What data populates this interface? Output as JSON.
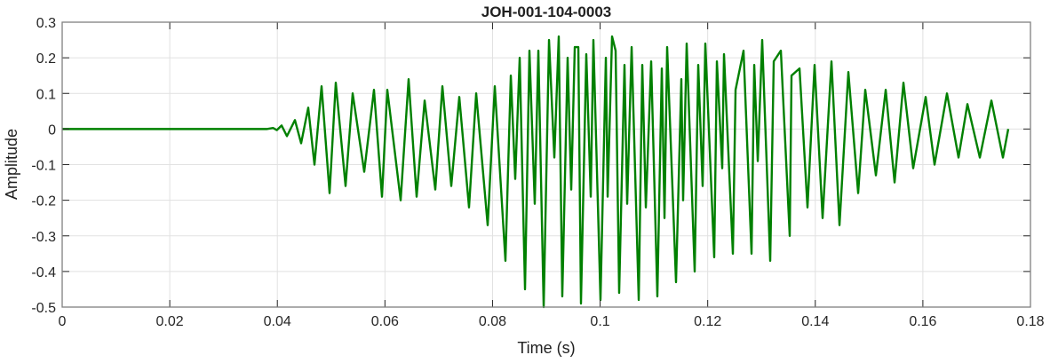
{
  "chart_data": {
    "type": "line",
    "title": "JOH-001-104-0003",
    "xlabel": "Time (s)",
    "ylabel": "Amplitude",
    "xlim": [
      0,
      0.18
    ],
    "ylim": [
      -0.5,
      0.3
    ],
    "xticks": [
      0,
      0.02,
      0.04,
      0.06,
      0.08,
      0.1,
      0.12,
      0.14,
      0.16,
      0.18
    ],
    "xtick_labels": [
      "0",
      "0.02",
      "0.04",
      "0.06",
      "0.08",
      "0.1",
      "0.12",
      "0.14",
      "0.16",
      "0.18"
    ],
    "yticks": [
      -0.5,
      -0.4,
      -0.3,
      -0.2,
      -0.1,
      0,
      0.1,
      0.2,
      0.3
    ],
    "ytick_labels": [
      "-0.5",
      "-0.4",
      "-0.3",
      "-0.2",
      "-0.1",
      "0",
      "0.1",
      "0.2",
      "0.3"
    ],
    "grid": true,
    "box": true,
    "line_color": "#008000",
    "series": [
      {
        "points": [
          [
            0,
            0
          ],
          [
            0.038,
            0
          ],
          [
            0.0392,
            0.003
          ],
          [
            0.0399,
            -0.003
          ],
          [
            0.04079,
            0.01
          ],
          [
            0.04178,
            -0.02
          ],
          [
            0.04327,
            0.025
          ],
          [
            0.04442,
            -0.04
          ],
          [
            0.04574,
            0.06
          ],
          [
            0.0469,
            -0.1
          ],
          [
            0.04822,
            0.12
          ],
          [
            0.04971,
            -0.18
          ],
          [
            0.05086,
            0.13
          ],
          [
            0.05268,
            -0.16
          ],
          [
            0.054,
            0.1
          ],
          [
            0.05615,
            -0.12
          ],
          [
            0.05796,
            0.11
          ],
          [
            0.05945,
            -0.19
          ],
          [
            0.06044,
            0.11
          ],
          [
            0.06292,
            -0.2
          ],
          [
            0.0644,
            0.14
          ],
          [
            0.06589,
            -0.19
          ],
          [
            0.06738,
            0.08
          ],
          [
            0.06936,
            -0.17
          ],
          [
            0.07068,
            0.12
          ],
          [
            0.07233,
            -0.16
          ],
          [
            0.07382,
            0.09
          ],
          [
            0.07563,
            -0.22
          ],
          [
            0.07696,
            0.1
          ],
          [
            0.0791,
            -0.27
          ],
          [
            0.08042,
            0.12
          ],
          [
            0.0824,
            -0.37
          ],
          [
            0.0834,
            0.15
          ],
          [
            0.08422,
            -0.14
          ],
          [
            0.08505,
            0.2
          ],
          [
            0.08604,
            -0.45
          ],
          [
            0.08686,
            0.22
          ],
          [
            0.08785,
            -0.21
          ],
          [
            0.08852,
            0.22
          ],
          [
            0.08951,
            -0.5
          ],
          [
            0.0905,
            0.25
          ],
          [
            0.09149,
            -0.08
          ],
          [
            0.09231,
            0.26
          ],
          [
            0.09297,
            -0.47
          ],
          [
            0.09396,
            0.2
          ],
          [
            0.09463,
            -0.17
          ],
          [
            0.09529,
            0.23
          ],
          [
            0.09595,
            0.23
          ],
          [
            0.09644,
            -0.49
          ],
          [
            0.09743,
            0.21
          ],
          [
            0.09826,
            -0.19
          ],
          [
            0.09875,
            0.25
          ],
          [
            0.10007,
            -0.48
          ],
          [
            0.10107,
            0.2
          ],
          [
            0.1014,
            -0.19
          ],
          [
            0.10222,
            0.26
          ],
          [
            0.10288,
            0.22
          ],
          [
            0.10354,
            -0.46
          ],
          [
            0.10453,
            0.18
          ],
          [
            0.10503,
            -0.21
          ],
          [
            0.10586,
            0.23
          ],
          [
            0.10718,
            -0.48
          ],
          [
            0.10784,
            0.18
          ],
          [
            0.1085,
            -0.22
          ],
          [
            0.10949,
            0.19
          ],
          [
            0.11064,
            -0.47
          ],
          [
            0.11147,
            0.17
          ],
          [
            0.11197,
            -0.25
          ],
          [
            0.11246,
            0.23
          ],
          [
            0.11411,
            -0.43
          ],
          [
            0.1151,
            0.14
          ],
          [
            0.11543,
            -0.2
          ],
          [
            0.11609,
            0.24
          ],
          [
            0.11758,
            -0.4
          ],
          [
            0.11824,
            0.18
          ],
          [
            0.11906,
            -0.16
          ],
          [
            0.11956,
            0.24
          ],
          [
            0.12121,
            -0.36
          ],
          [
            0.12171,
            0.19
          ],
          [
            0.1227,
            -0.11
          ],
          [
            0.12303,
            0.21
          ],
          [
            0.12468,
            -0.35
          ],
          [
            0.12518,
            0.11
          ],
          [
            0.12666,
            0.22
          ],
          [
            0.12815,
            -0.35
          ],
          [
            0.12865,
            0.18
          ],
          [
            0.12931,
            -0.09
          ],
          [
            0.13013,
            0.25
          ],
          [
            0.13162,
            -0.37
          ],
          [
            0.13228,
            0.19
          ],
          [
            0.1336,
            0.22
          ],
          [
            0.13525,
            -0.3
          ],
          [
            0.13558,
            0.15
          ],
          [
            0.13707,
            0.17
          ],
          [
            0.13855,
            -0.22
          ],
          [
            0.13987,
            0.18
          ],
          [
            0.14136,
            -0.25
          ],
          [
            0.14301,
            0.19
          ],
          [
            0.1445,
            -0.27
          ],
          [
            0.14615,
            0.16
          ],
          [
            0.14797,
            -0.18
          ],
          [
            0.14929,
            0.11
          ],
          [
            0.15127,
            -0.13
          ],
          [
            0.15309,
            0.11
          ],
          [
            0.15474,
            -0.15
          ],
          [
            0.15639,
            0.13
          ],
          [
            0.1582,
            -0.11
          ],
          [
            0.16052,
            0.09
          ],
          [
            0.16217,
            -0.1
          ],
          [
            0.16448,
            0.1
          ],
          [
            0.16663,
            -0.08
          ],
          [
            0.16828,
            0.07
          ],
          [
            0.17059,
            -0.08
          ],
          [
            0.17274,
            0.08
          ],
          [
            0.17488,
            -0.08
          ],
          [
            0.17587,
            0.0
          ]
        ]
      }
    ]
  }
}
